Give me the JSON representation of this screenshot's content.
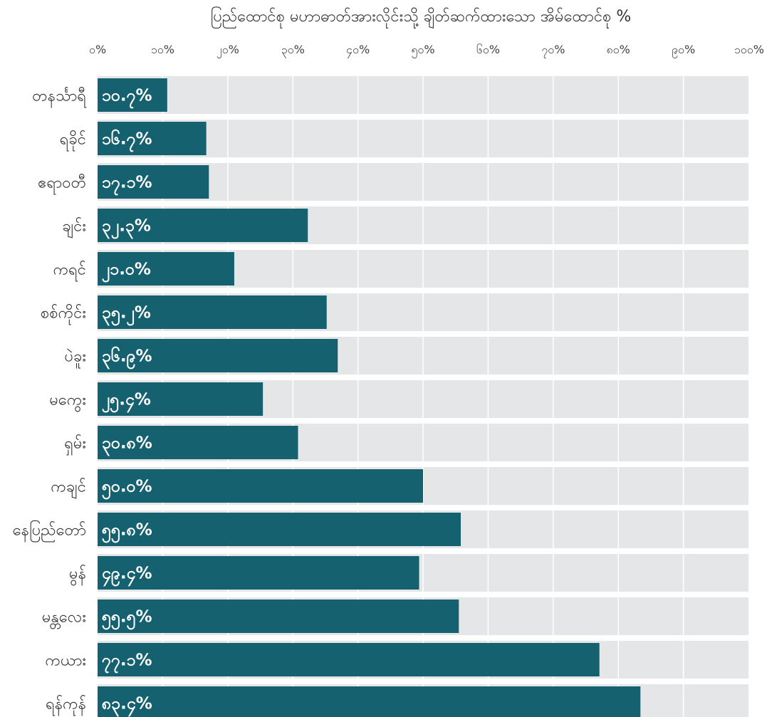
{
  "chart_data": {
    "type": "bar",
    "orientation": "horizontal",
    "title": "ပြည်ထောင်စု မဟာဓာတ်အားလိုင်းသို့ ချိတ်ဆက်ထားသော အိမ်ထောင်စု %",
    "xlabel": "",
    "ylabel": "",
    "xlim": [
      0,
      100
    ],
    "grid": true,
    "x_tick_labels": [
      "၀%",
      "၁၀%",
      "၂၀%",
      "၃၀%",
      "၄၀%",
      "၅၀%",
      "၆၀%",
      "၇၀%",
      "၈၀%",
      "၉၀%",
      "၁၀၀%"
    ],
    "categories": [
      "တနင်္သာရီ",
      "ရခိုင်",
      "ဧရာဝတီ",
      "ချင်း",
      "ကရင်",
      "စစ်ကိုင်း",
      "ပဲခူး",
      "မကွေး",
      "ရှမ်း",
      "ကချင်",
      "နေပြည်တော်",
      "မွန်",
      "မန္တလေး",
      "ကယား",
      "ရန်ကုန်"
    ],
    "values": [
      10.7,
      16.7,
      17.1,
      32.3,
      21.0,
      35.2,
      36.9,
      25.4,
      30.8,
      50.0,
      55.8,
      49.4,
      55.5,
      77.1,
      83.4
    ],
    "value_labels": [
      "၁၀.၇%",
      "၁၆.၇%",
      "၁၇.၁%",
      "၃၂.၃%",
      "၂၁.၀%",
      "၃၅.၂%",
      "၃၆.၉%",
      "၂၅.၄%",
      "၃၀.၈%",
      "၅၀.၀%",
      "၅၅.၈%",
      "၄၉.၄%",
      "၅၅.၅%",
      "၇၇.၁%",
      "၈၃.၄%"
    ],
    "colors": {
      "bar": "#16616F",
      "track": "#E5E6E8",
      "grid": "#FFFFFF",
      "text": "#333333"
    }
  }
}
